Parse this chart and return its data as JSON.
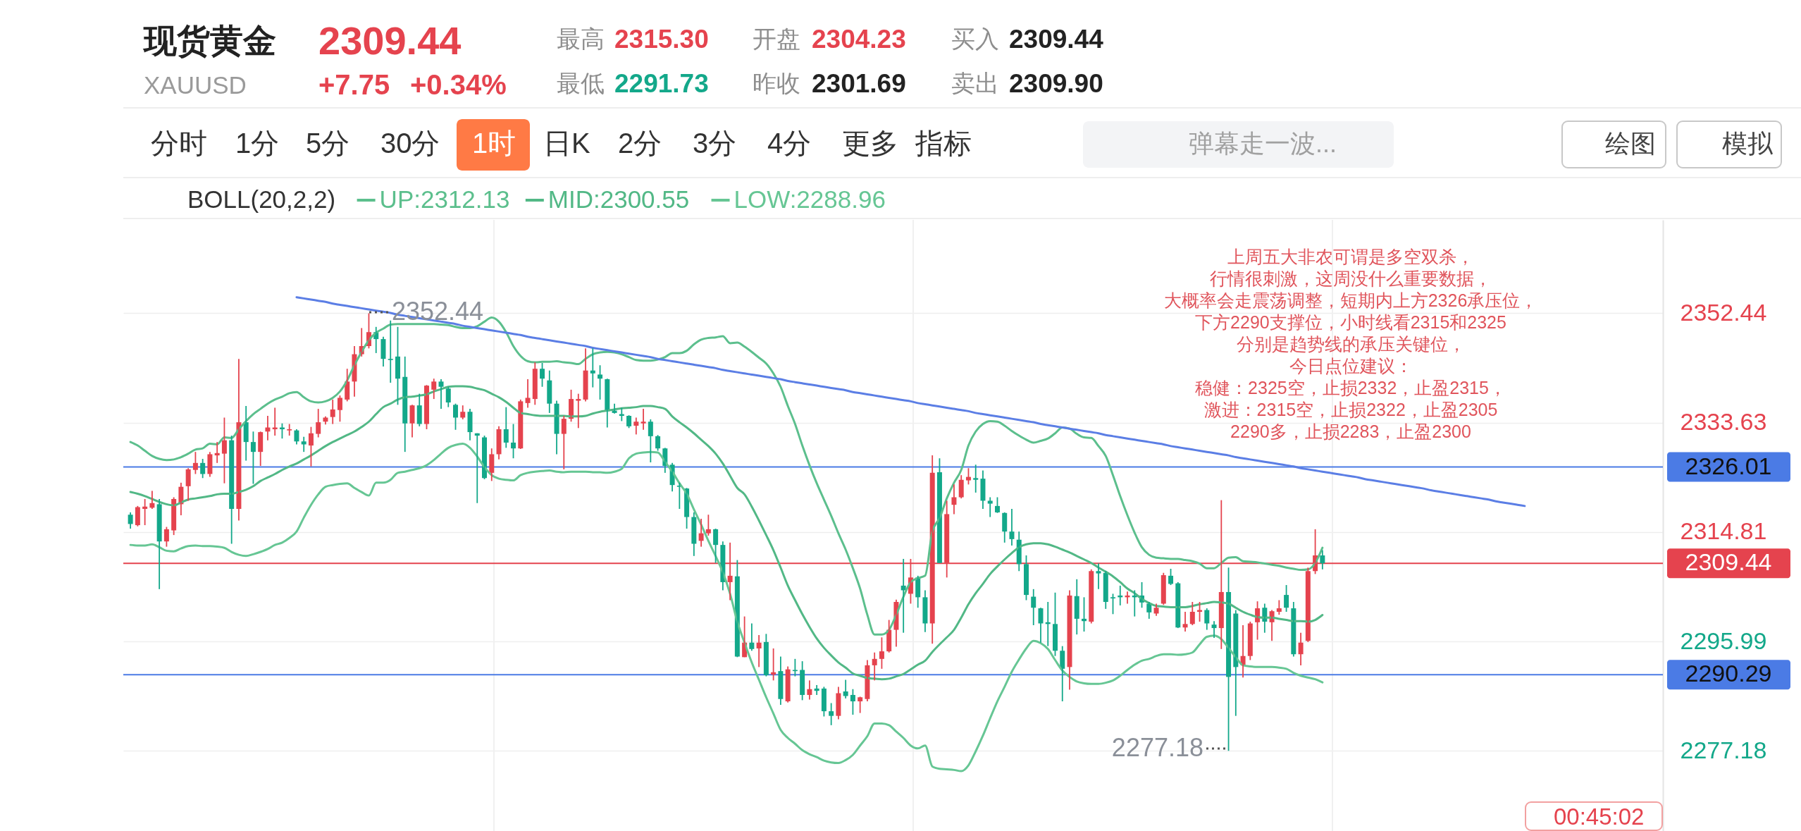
{
  "chart_data": {
    "type": "candlestick",
    "title": "现货黄金",
    "subtitle": "XAUUSD",
    "categories": [
      null,
      null,
      null,
      null,
      null,
      null,
      null,
      null,
      null,
      null,
      null,
      null,
      null,
      null,
      null,
      null,
      null,
      null,
      null,
      null,
      null,
      null,
      null,
      null,
      null,
      null,
      null,
      null,
      null,
      null,
      null,
      null,
      null,
      null,
      null,
      null,
      null,
      null,
      null,
      null,
      null,
      null,
      null,
      null,
      null,
      null,
      null,
      null,
      null,
      null,
      null,
      null,
      null,
      null,
      null,
      null,
      null,
      null,
      null,
      null,
      null,
      null,
      null,
      null,
      null,
      null,
      null,
      null,
      null,
      null,
      null,
      null,
      null,
      null,
      null,
      null,
      null,
      null,
      null,
      null,
      null,
      null,
      null,
      null,
      null,
      null,
      null,
      null,
      null,
      null,
      null,
      null,
      null,
      null,
      null,
      null,
      null,
      null,
      null,
      null,
      null,
      null,
      null,
      null,
      null,
      null,
      null,
      null,
      null,
      null,
      null,
      null,
      null,
      null,
      null,
      null,
      null,
      null,
      null,
      null,
      null,
      null,
      null,
      null,
      null,
      null,
      null,
      null,
      null,
      null,
      null,
      null,
      null,
      null,
      null,
      null,
      null,
      null,
      null,
      null,
      null,
      null,
      null,
      null,
      null,
      null,
      null,
      null,
      null,
      null,
      null,
      null,
      null,
      null,
      null,
      null,
      null,
      null,
      null,
      null,
      null,
      null,
      null,
      null,
      null,
      null,
      null,
      null,
      null,
      null,
      null,
      null,
      null,
      null,
      null,
      null,
      null,
      null,
      null,
      null,
      null,
      null,
      null,
      null,
      null,
      null,
      null,
      null,
      null,
      null,
      null,
      null,
      null,
      null
    ],
    "ohlc": [
      [
        2317.8,
        2318.2,
        2315.4,
        2316.2
      ],
      [
        2316.0,
        2319.3,
        2315.8,
        2319.1
      ],
      [
        2318.8,
        2320.5,
        2316.0,
        2319.2
      ],
      [
        2319.0,
        2321.9,
        2318.8,
        2319.8
      ],
      [
        2319.6,
        2320.5,
        2305.0,
        2313.2
      ],
      [
        2313.2,
        2315.7,
        2312.3,
        2315.3
      ],
      [
        2315.1,
        2320.8,
        2314.3,
        2320.5
      ],
      [
        2319.6,
        2323.3,
        2317.7,
        2322.6
      ],
      [
        2322.7,
        2325.8,
        2320.2,
        2325.6
      ],
      [
        2325.5,
        2328.6,
        2324.8,
        2326.7
      ],
      [
        2326.7,
        2327.4,
        2324.1,
        2324.8
      ],
      [
        2324.8,
        2328.6,
        2324.3,
        2328.2
      ],
      [
        2328.0,
        2330.3,
        2326.7,
        2328.4
      ],
      [
        2328.3,
        2334.5,
        2323.2,
        2330.6
      ],
      [
        2330.6,
        2331.4,
        2312.8,
        2318.8
      ],
      [
        2318.8,
        2344.6,
        2316.8,
        2333.7
      ],
      [
        2333.7,
        2336.5,
        2327.1,
        2330.3
      ],
      [
        2330.3,
        2332.1,
        2323.1,
        2328.6
      ],
      [
        2328.6,
        2332.1,
        2326.2,
        2332.0
      ],
      [
        2332.1,
        2334.8,
        2330.6,
        2332.8
      ],
      [
        2332.5,
        2336.2,
        2331.4,
        2332.8
      ],
      [
        2332.8,
        2333.5,
        2330.9,
        2332.5
      ],
      [
        2332.3,
        2333.4,
        2331.4,
        2332.5
      ],
      [
        2332.3,
        2332.5,
        2329.9,
        2330.4
      ],
      [
        2330.4,
        2331.2,
        2328.6,
        2329.9
      ],
      [
        2329.7,
        2332.9,
        2326.1,
        2331.8
      ],
      [
        2331.7,
        2336.0,
        2331.1,
        2333.7
      ],
      [
        2333.8,
        2334.7,
        2333.3,
        2334.5
      ],
      [
        2334.6,
        2337.6,
        2333.4,
        2335.9
      ],
      [
        2335.8,
        2338.3,
        2333.8,
        2337.9
      ],
      [
        2337.6,
        2342.9,
        2337.3,
        2340.7
      ],
      [
        2340.7,
        2346.8,
        2338.1,
        2345.4
      ],
      [
        2345.4,
        2349.9,
        2345.0,
        2346.8
      ],
      [
        2346.8,
        2352.44,
        2346.4,
        2349.2
      ],
      [
        2349.2,
        2350.1,
        2345.6,
        2348.0
      ],
      [
        2348.0,
        2348.4,
        2343.3,
        2344.6
      ],
      [
        2344.6,
        2351.2,
        2340.5,
        2344.4
      ],
      [
        2345.0,
        2350.1,
        2336.7,
        2341.2
      ],
      [
        2341.5,
        2345.0,
        2328.6,
        2333.5
      ],
      [
        2333.5,
        2336.7,
        2331.1,
        2336.6
      ],
      [
        2336.6,
        2338.6,
        2333.0,
        2333.4
      ],
      [
        2333.4,
        2340.1,
        2332.5,
        2340.0
      ],
      [
        2339.3,
        2341.2,
        2337.7,
        2340.7
      ],
      [
        2340.7,
        2341.1,
        2336.0,
        2339.8
      ],
      [
        2339.5,
        2339.8,
        2336.3,
        2337.1
      ],
      [
        2336.7,
        2336.9,
        2332.4,
        2334.5
      ],
      [
        2334.5,
        2336.6,
        2334.2,
        2335.5
      ],
      [
        2335.5,
        2336.0,
        2330.6,
        2332.0
      ],
      [
        2331.8,
        2331.8,
        2319.8,
        2331.4
      ],
      [
        2331.1,
        2331.4,
        2323.9,
        2324.1
      ],
      [
        2325.0,
        2329.2,
        2323.6,
        2328.2
      ],
      [
        2328.2,
        2333.0,
        2327.3,
        2332.5
      ],
      [
        2332.5,
        2336.3,
        2329.3,
        2330.2
      ],
      [
        2330.2,
        2333.4,
        2327.5,
        2329.2
      ],
      [
        2329.2,
        2337.6,
        2329.1,
        2337.3
      ],
      [
        2337.0,
        2341.1,
        2336.2,
        2337.9
      ],
      [
        2337.7,
        2344.0,
        2336.7,
        2342.9
      ],
      [
        2342.9,
        2343.9,
        2339.8,
        2341.2
      ],
      [
        2340.9,
        2342.6,
        2335.3,
        2336.9
      ],
      [
        2336.9,
        2337.4,
        2328.2,
        2331.7
      ],
      [
        2331.7,
        2334.8,
        2325.6,
        2334.3
      ],
      [
        2334.3,
        2339.3,
        2333.8,
        2337.7
      ],
      [
        2337.4,
        2338.6,
        2332.7,
        2337.7
      ],
      [
        2337.6,
        2346.4,
        2337.3,
        2342.6
      ],
      [
        2342.6,
        2346.4,
        2339.7,
        2342.1
      ],
      [
        2341.9,
        2343.5,
        2337.6,
        2341.2
      ],
      [
        2341.1,
        2341.2,
        2332.8,
        2335.6
      ],
      [
        2335.7,
        2336.9,
        2335.2,
        2335.3
      ],
      [
        2335.1,
        2336.2,
        2333.9,
        2334.8
      ],
      [
        2334.8,
        2334.9,
        2332.7,
        2333.0
      ],
      [
        2333.1,
        2334.5,
        2331.6,
        2333.8
      ],
      [
        2333.5,
        2336.0,
        2332.4,
        2333.8
      ],
      [
        2333.8,
        2334.2,
        2326.8,
        2331.3
      ],
      [
        2331.3,
        2331.5,
        2328.8,
        2329.2
      ],
      [
        2329.2,
        2329.3,
        2325.0,
        2326.2
      ],
      [
        2326.4,
        2326.7,
        2321.8,
        2322.9
      ],
      [
        2322.8,
        2323.3,
        2318.8,
        2322.6
      ],
      [
        2322.3,
        2322.4,
        2315.4,
        2317.4
      ],
      [
        2317.4,
        2318.2,
        2310.7,
        2312.8
      ],
      [
        2313.3,
        2317.1,
        2312.3,
        2314.6
      ],
      [
        2314.6,
        2317.8,
        2314.2,
        2315.3
      ],
      [
        2315.3,
        2315.4,
        2309.5,
        2312.6
      ],
      [
        2312.6,
        2313.2,
        2304.8,
        2306.2
      ],
      [
        2306.2,
        2313.0,
        2303.1,
        2307.3
      ],
      [
        2307.2,
        2310.0,
        2293.3,
        2293.4
      ],
      [
        2293.3,
        2300.3,
        2293.3,
        2295.8
      ],
      [
        2295.8,
        2299.1,
        2294.4,
        2294.7
      ],
      [
        2294.8,
        2297.1,
        2291.6,
        2295.8
      ],
      [
        2295.9,
        2297.3,
        2290.0,
        2290.2
      ],
      [
        2290.3,
        2294.8,
        2289.3,
        2290.7
      ],
      [
        2290.9,
        2293.4,
        2285.1,
        2286.1
      ],
      [
        2285.7,
        2291.7,
        2285.5,
        2291.2
      ],
      [
        2291.1,
        2293.0,
        2290.0,
        2290.9
      ],
      [
        2291.1,
        2292.6,
        2285.9,
        2286.8
      ],
      [
        2286.8,
        2289.3,
        2286.0,
        2287.8
      ],
      [
        2287.9,
        2288.5,
        2286.8,
        2287.5
      ],
      [
        2287.9,
        2288.2,
        2283.1,
        2284.0
      ],
      [
        2284.0,
        2285.4,
        2281.6,
        2283.2
      ],
      [
        2283.2,
        2288.2,
        2282.6,
        2287.1
      ],
      [
        2287.4,
        2289.4,
        2286.2,
        2286.6
      ],
      [
        2286.8,
        2287.8,
        2283.4,
        2285.7
      ],
      [
        2285.7,
        2286.5,
        2283.7,
        2286.4
      ],
      [
        2286.1,
        2292.8,
        2285.7,
        2291.9
      ],
      [
        2291.9,
        2294.1,
        2289.3,
        2293.0
      ],
      [
        2293.0,
        2296.7,
        2291.3,
        2294.3
      ],
      [
        2294.3,
        2299.7,
        2294.1,
        2298.0
      ],
      [
        2298.0,
        2303.2,
        2295.1,
        2302.8
      ],
      [
        2305.6,
        2310.2,
        2297.5,
        2304.8
      ],
      [
        2304.2,
        2310.2,
        2302.5,
        2307.0
      ],
      [
        2307.0,
        2307.3,
        2301.8,
        2303.6
      ],
      [
        2303.6,
        2304.8,
        2297.6,
        2299.1
      ],
      [
        2299.1,
        2328.0,
        2295.6,
        2325.0
      ],
      [
        2325.1,
        2327.5,
        2309.5,
        2309.5
      ],
      [
        2309.5,
        2320.2,
        2307.0,
        2317.9
      ],
      [
        2319.5,
        2323.0,
        2317.9,
        2320.8
      ],
      [
        2320.8,
        2324.6,
        2320.6,
        2323.8
      ],
      [
        2323.7,
        2325.8,
        2323.0,
        2324.3
      ],
      [
        2324.1,
        2326.4,
        2321.6,
        2323.8
      ],
      [
        2324.0,
        2325.4,
        2318.8,
        2320.2
      ],
      [
        2320.2,
        2320.8,
        2317.4,
        2319.7
      ],
      [
        2319.3,
        2320.8,
        2318.1,
        2318.2
      ],
      [
        2318.1,
        2318.2,
        2313.0,
        2314.9
      ],
      [
        2314.9,
        2318.8,
        2312.5,
        2313.6
      ],
      [
        2313.5,
        2314.9,
        2308.1,
        2309.3
      ],
      [
        2309.3,
        2310.8,
        2303.1,
        2304.0
      ],
      [
        2303.7,
        2305.0,
        2298.8,
        2301.8
      ],
      [
        2301.7,
        2301.8,
        2295.8,
        2299.1
      ],
      [
        2299.3,
        2302.8,
        2295.2,
        2299.0
      ],
      [
        2299.0,
        2304.4,
        2293.5,
        2294.4
      ],
      [
        2294.4,
        2295.2,
        2285.7,
        2291.3
      ],
      [
        2291.6,
        2304.8,
        2287.7,
        2303.9
      ],
      [
        2303.8,
        2306.7,
        2297.2,
        2299.9
      ],
      [
        2299.9,
        2303.6,
        2297.7,
        2299.5
      ],
      [
        2299.4,
        2308.4,
        2299.1,
        2308.1
      ],
      [
        2308.1,
        2309.4,
        2305.0,
        2307.7
      ],
      [
        2307.8,
        2308.1,
        2301.6,
        2302.8
      ],
      [
        2303.6,
        2304.2,
        2300.7,
        2303.4
      ],
      [
        2303.9,
        2305.6,
        2302.2,
        2303.6
      ],
      [
        2303.6,
        2304.6,
        2302.5,
        2303.9
      ],
      [
        2303.9,
        2304.8,
        2300.3,
        2303.6
      ],
      [
        2303.9,
        2306.2,
        2301.8,
        2302.7
      ],
      [
        2302.5,
        2302.8,
        2299.9,
        2301.0
      ],
      [
        2300.8,
        2302.5,
        2300.4,
        2301.8
      ],
      [
        2302.5,
        2307.8,
        2302.3,
        2307.4
      ],
      [
        2307.3,
        2308.5,
        2305.7,
        2305.9
      ],
      [
        2306.0,
        2306.2,
        2298.3,
        2298.4
      ],
      [
        2298.4,
        2301.1,
        2297.7,
        2299.0
      ],
      [
        2299.0,
        2302.8,
        2298.8,
        2301.1
      ],
      [
        2301.1,
        2302.8,
        2299.4,
        2301.4
      ],
      [
        2301.4,
        2301.7,
        2298.0,
        2299.1
      ],
      [
        2298.9,
        2299.5,
        2296.6,
        2298.3
      ],
      [
        2298.3,
        2320.3,
        2294.7,
        2304.5
      ],
      [
        2304.5,
        2308.7,
        2277.18,
        2289.9
      ],
      [
        2300.8,
        2301.4,
        2283.2,
        2291.6
      ],
      [
        2291.9,
        2298.8,
        2289.8,
        2293.5
      ],
      [
        2293.5,
        2299.4,
        2292.8,
        2299.1
      ],
      [
        2299.3,
        2302.9,
        2296.3,
        2301.7
      ],
      [
        2301.8,
        2302.5,
        2297.5,
        2299.4
      ],
      [
        2299.3,
        2301.4,
        2296.1,
        2301.2
      ],
      [
        2301.1,
        2303.1,
        2300.6,
        2301.7
      ],
      [
        2304.0,
        2305.7,
        2301.1,
        2301.8
      ],
      [
        2301.7,
        2302.8,
        2293.4,
        2293.8
      ],
      [
        2293.8,
        2297.5,
        2291.9,
        2295.8
      ],
      [
        2296.1,
        2308.7,
        2295.9,
        2308.1
      ],
      [
        2308.1,
        2315.3,
        2307.6,
        2310.8
      ],
      [
        2310.8,
        2311.7,
        2308.4,
        2309.44
      ],
      null,
      null,
      null,
      null,
      null,
      null,
      null,
      null,
      null,
      null,
      null,
      null,
      null,
      null,
      null,
      null,
      null,
      null,
      null,
      null,
      null,
      null,
      null,
      null,
      null,
      null,
      null,
      null
    ],
    "colors": [
      "#13a88a",
      "#e5434e",
      "#e5434e",
      "#e5434e",
      "#13a88a",
      "#e5434e",
      "#e5434e",
      "#e5434e",
      "#e5434e",
      "#e5434e",
      "#13a88a",
      "#e5434e",
      "#e5434e",
      "#e5434e",
      "#13a88a",
      "#e5434e",
      "#13a88a",
      "#13a88a",
      "#e5434e",
      "#e5434e",
      "#e5434e",
      "#13a88a",
      "#e5434e",
      "#13a88a",
      "#13a88a",
      "#e5434e",
      "#e5434e",
      "#e5434e",
      "#e5434e",
      "#e5434e",
      "#e5434e",
      "#e5434e",
      "#e5434e",
      "#e5434e",
      "#13a88a",
      "#13a88a",
      "#13a88a",
      "#13a88a",
      "#13a88a",
      "#e5434e",
      "#13a88a",
      "#e5434e",
      "#e5434e",
      "#13a88a",
      "#13a88a",
      "#13a88a",
      "#e5434e",
      "#13a88a",
      "#13a88a",
      "#13a88a",
      "#e5434e",
      "#e5434e",
      "#13a88a",
      "#13a88a",
      "#e5434e",
      "#e5434e",
      "#e5434e",
      "#13a88a",
      "#13a88a",
      "#13a88a",
      "#e5434e",
      "#e5434e",
      "#e5434e",
      "#e5434e",
      "#13a88a",
      "#13a88a",
      "#13a88a",
      "#13a88a",
      "#13a88a",
      "#13a88a",
      "#e5434e",
      "#e5434e",
      "#13a88a",
      "#13a88a",
      "#13a88a",
      "#13a88a",
      "#13a88a",
      "#13a88a",
      "#13a88a",
      "#e5434e",
      "#e5434e",
      "#13a88a",
      "#13a88a",
      "#e5434e",
      "#13a88a",
      "#e5434e",
      "#13a88a",
      "#e5434e",
      "#13a88a",
      "#e5434e",
      "#13a88a",
      "#e5434e",
      "#13a88a",
      "#13a88a",
      "#e5434e",
      "#13a88a",
      "#13a88a",
      "#13a88a",
      "#e5434e",
      "#13a88a",
      "#13a88a",
      "#e5434e",
      "#e5434e",
      "#e5434e",
      "#e5434e",
      "#e5434e",
      "#e5434e",
      "#13a88a",
      "#e5434e",
      "#13a88a",
      "#13a88a",
      "#e5434e",
      "#13a88a",
      "#e5434e",
      "#e5434e",
      "#e5434e",
      "#e5434e",
      "#13a88a",
      "#13a88a",
      "#13a88a",
      "#13a88a",
      "#13a88a",
      "#13a88a",
      "#13a88a",
      "#13a88a",
      "#13a88a",
      "#13a88a",
      "#13a88a",
      "#13a88a",
      "#13a88a",
      "#e5434e",
      "#13a88a",
      "#13a88a",
      "#e5434e",
      "#13a88a",
      "#13a88a",
      "#13a88a",
      "#13a88a",
      "#e5434e",
      "#13a88a",
      "#13a88a",
      "#13a88a",
      "#e5434e",
      "#e5434e",
      "#13a88a",
      "#13a88a",
      "#e5434e",
      "#e5434e",
      "#e5434e",
      "#13a88a",
      "#13a88a",
      "#e5434e",
      "#13a88a",
      "#13a88a",
      "#e5434e",
      "#e5434e",
      "#e5434e",
      "#13a88a",
      "#e5434e",
      "#e5434e",
      "#13a88a",
      "#13a88a",
      "#e5434e",
      "#e5434e",
      "#e5434e",
      "#13a88a",
      null,
      null,
      null,
      null,
      null,
      null,
      null,
      null,
      null,
      null,
      null,
      null,
      null,
      null,
      null,
      null,
      null,
      null,
      null,
      null,
      null,
      null,
      null,
      null,
      null,
      null,
      null,
      null
    ],
    "series": [
      {
        "name": "UP:2312.13",
        "type": "line",
        "color": "#5cbf8d",
        "values": [
          2330.3,
          2329.7,
          2328.8,
          2327.9,
          2327.4,
          2327.2,
          2327.3,
          2327.7,
          2328.3,
          2329.0,
          2329.2,
          2330.0,
          2329.9,
          2331.1,
          2331.0,
          2332.5,
          2333.9,
          2335.1,
          2336.0,
          2336.9,
          2337.6,
          2338.1,
          2338.7,
          2338.9,
          2338.0,
          2337.3,
          2337.1,
          2337.3,
          2337.9,
          2339.0,
          2340.9,
          2343.5,
          2345.8,
          2347.8,
          2349.1,
          2349.8,
          2350.5,
          2350.6,
          2350.6,
          2350.6,
          2350.6,
          2350.6,
          2350.6,
          2350.5,
          2350.4,
          2350.1,
          2349.9,
          2349.9,
          2350.2,
          2351.0,
          2351.7,
          2351.0,
          2349.2,
          2346.8,
          2345.1,
          2344.2,
          2344.0,
          2344.1,
          2344.1,
          2344.2,
          2344.0,
          2343.9,
          2343.7,
          2344.6,
          2345.4,
          2345.7,
          2345.8,
          2345.7,
          2345.4,
          2344.9,
          2344.4,
          2344.3,
          2344.3,
          2344.5,
          2344.9,
          2345.6,
          2345.6,
          2346.0,
          2347.1,
          2347.9,
          2348.2,
          2348.3,
          2348.5,
          2347.3,
          2347.4,
          2346.7,
          2345.8,
          2344.8,
          2343.8,
          2342.1,
          2339.8,
          2336.5,
          2333.4,
          2329.7,
          2326.3,
          2323.2,
          2320.4,
          2317.6,
          2314.6,
          2311.8,
          2308.6,
          2305.1,
          2300.6,
          2297.2,
          2297.2,
          2298.0,
          2300.6,
          2303.7,
          2306.2,
          2306.9,
          2307.3,
          2314.9,
          2317.2,
          2320.6,
          2323.3,
          2325.5,
          2329.7,
          2332.1,
          2333.4,
          2333.9,
          2333.8,
          2333.1,
          2332.2,
          2331.4,
          2330.7,
          2330.2,
          2330.5,
          2330.9,
          2331.8,
          2332.8,
          2332.6,
          2331.7,
          2331.1,
          2331.0,
          2329.6,
          2327.9,
          2324.6,
          2321.0,
          2317.7,
          2314.7,
          2312.2,
          2310.9,
          2310.4,
          2310.3,
          2310.2,
          2310.2,
          2310.0,
          2309.8,
          2309.4,
          2308.6,
          2308.6,
          2309.5,
          2310.4,
          2310.5,
          2309.8,
          2309.7,
          2309.6,
          2309.4,
          2309.2,
          2309.0,
          2308.7,
          2308.5,
          2308.3,
          2308.4,
          2309.5,
          2312.13,
          null,
          null,
          null,
          null,
          null,
          null,
          null,
          null,
          null,
          null,
          null,
          null,
          null,
          null,
          null,
          null,
          null,
          null,
          null,
          null,
          null,
          null,
          null,
          null,
          null,
          null,
          null,
          null
        ]
      },
      {
        "name": "MID:2300.55",
        "type": "line",
        "color": "#52b886",
        "values": [
          2321.7,
          2321.4,
          2321.0,
          2320.5,
          2320.0,
          2319.6,
          2319.4,
          2319.9,
          2320.4,
          2320.6,
          2320.8,
          2321.0,
          2321.3,
          2321.4,
          2321.4,
          2321.7,
          2322.1,
          2322.7,
          2323.6,
          2324.2,
          2324.8,
          2325.5,
          2326.1,
          2326.6,
          2327.3,
          2328.0,
          2328.8,
          2329.6,
          2330.3,
          2330.9,
          2331.5,
          2332.1,
          2332.9,
          2333.8,
          2335.1,
          2336.3,
          2336.9,
          2337.6,
          2338.0,
          2338.1,
          2338.3,
          2338.5,
          2339.0,
          2339.4,
          2339.8,
          2339.9,
          2339.9,
          2339.8,
          2339.5,
          2339.2,
          2338.6,
          2338.0,
          2337.2,
          2336.2,
          2335.3,
          2335.1,
          2334.9,
          2334.8,
          2334.8,
          2334.8,
          2334.8,
          2334.7,
          2334.7,
          2334.8,
          2335.2,
          2335.5,
          2335.7,
          2335.9,
          2336.1,
          2336.2,
          2336.3,
          2336.5,
          2336.5,
          2336.3,
          2336.0,
          2334.7,
          2333.7,
          2332.8,
          2331.8,
          2330.7,
          2329.6,
          2328.3,
          2326.6,
          2324.5,
          2322.4,
          2321.3,
          2319.2,
          2316.8,
          2314.3,
          2311.7,
          2308.7,
          2305.6,
          2303.1,
          2300.7,
          2298.5,
          2296.5,
          2294.9,
          2293.6,
          2292.4,
          2291.5,
          2290.5,
          2290.1,
          2289.7,
          2289.6,
          2289.5,
          2289.6,
          2290.0,
          2290.4,
          2291.2,
          2292.0,
          2292.7,
          2294.2,
          2295.5,
          2296.7,
          2298.0,
          2300.1,
          2302.4,
          2304.3,
          2305.9,
          2307.6,
          2308.9,
          2310.1,
          2311.2,
          2312.2,
          2312.7,
          2312.9,
          2312.9,
          2312.7,
          2312.3,
          2311.8,
          2311.3,
          2310.7,
          2310.1,
          2309.5,
          2308.7,
          2308.0,
          2307.2,
          2306.2,
          2305.1,
          2304.3,
          2303.3,
          2302.6,
          2302.1,
          2302.0,
          2301.9,
          2301.9,
          2301.9,
          2302.1,
          2302.4,
          2302.6,
          2302.8,
          2302.7,
          2302.5,
          2301.8,
          2301.1,
          2300.6,
          2300.2,
          2300.1,
          2300.1,
          2299.9,
          2299.7,
          2299.5,
          2299.5,
          2299.4,
          2299.7,
          2300.55,
          null,
          null,
          null,
          null,
          null,
          null,
          null,
          null,
          null,
          null,
          null,
          null,
          null,
          null,
          null,
          null,
          null,
          null,
          null,
          null,
          null,
          null,
          null,
          null,
          null,
          null,
          null,
          null
        ]
      },
      {
        "name": "LOW:2288.96",
        "type": "line",
        "color": "#66c694",
        "values": [
          2312.6,
          2312.5,
          2312.5,
          2312.7,
          2312.2,
          2311.6,
          2311.5,
          2312.0,
          2312.4,
          2312.5,
          2312.4,
          2312.4,
          2312.3,
          2312.1,
          2311.4,
          2310.9,
          2310.7,
          2311.0,
          2311.4,
          2311.9,
          2312.6,
          2313.0,
          2313.8,
          2314.9,
          2317.3,
          2319.5,
          2321.3,
          2322.6,
          2322.9,
          2323.1,
          2323.2,
          2322.4,
          2321.7,
          2321.1,
          2323.3,
          2323.3,
          2323.8,
          2325.0,
          2325.2,
          2325.5,
          2325.8,
          2326.3,
          2327.2,
          2328.3,
          2329.3,
          2329.8,
          2330.0,
          2329.3,
          2327.8,
          2326.0,
          2324.6,
          2324.0,
          2323.8,
          2323.7,
          2324.6,
          2325.0,
          2325.2,
          2325.3,
          2325.4,
          2325.2,
          2325.1,
          2325.2,
          2325.2,
          2325.2,
          2325.1,
          2325.1,
          2325.0,
          2325.2,
          2325.7,
          2327.5,
          2328.3,
          2328.5,
          2328.6,
          2328.5,
          2326.9,
          2325.2,
          2323.2,
          2321.4,
          2318.7,
          2316.1,
          2313.3,
          2310.7,
          2307.9,
          2304.2,
          2299.4,
          2295.8,
          2292.4,
          2289.4,
          2286.4,
          2283.6,
          2280.8,
          2279.4,
          2278.4,
          2277.3,
          2276.6,
          2276.1,
          2275.5,
          2275.2,
          2275.1,
          2275.6,
          2276.5,
          2278.1,
          2279.7,
          2281.9,
          2281.9,
          2281.6,
          2280.5,
          2279.4,
          2278.1,
          2277.6,
          2278.1,
          2274.5,
          2274.1,
          2274.0,
          2273.9,
          2273.7,
          2274.7,
          2277.1,
          2279.8,
          2282.8,
          2285.7,
          2288.2,
          2290.8,
          2292.9,
          2294.8,
          2296.1,
          2295.7,
          2294.7,
          2292.8,
          2291.0,
          2289.9,
          2289.1,
          2288.8,
          2288.7,
          2288.7,
          2288.9,
          2289.3,
          2290.1,
          2291.1,
          2292.0,
          2292.7,
          2293.0,
          2293.5,
          2293.8,
          2293.8,
          2293.7,
          2293.8,
          2294.1,
          2295.5,
          2296.8,
          2297.0,
          2296.4,
          2294.9,
          2293.3,
          2291.9,
          2291.7,
          2291.6,
          2291.6,
          2291.6,
          2291.5,
          2291.3,
          2290.6,
          2290.1,
          2289.8,
          2289.5,
          2288.96,
          null,
          null,
          null,
          null,
          null,
          null,
          null,
          null,
          null,
          null,
          null,
          null,
          null,
          null,
          null,
          null,
          null,
          null,
          null,
          null,
          null,
          null,
          null,
          null,
          null,
          null,
          null,
          null
        ]
      },
      {
        "type": "line",
        "color": "#5b7ee5",
        "values": [
          null,
          null,
          null,
          null,
          null,
          null,
          null,
          null,
          null,
          null,
          null,
          null,
          null,
          null,
          null,
          null,
          null,
          null,
          null,
          null,
          null,
          null,
          null,
          2355.2,
          2355.0,
          2354.8,
          2354.6,
          2354.4,
          2354.1,
          2353.9,
          2353.7,
          2353.5,
          2353.3,
          2353.1,
          2352.9,
          2352.7,
          2352.5,
          2352.2,
          2352.0,
          2351.8,
          2351.6,
          2351.4,
          2351.2,
          2351.0,
          2350.8,
          2350.6,
          2350.3,
          2350.1,
          2349.9,
          2349.7,
          2349.5,
          2349.3,
          2349.1,
          2348.9,
          2348.7,
          2348.4,
          2348.2,
          2348.0,
          2347.8,
          2347.6,
          2347.4,
          2347.2,
          2347.0,
          2346.8,
          2346.5,
          2346.3,
          2346.1,
          2345.9,
          2345.7,
          2345.5,
          2345.3,
          2345.1,
          2344.9,
          2344.6,
          2344.4,
          2344.2,
          2344.0,
          2343.8,
          2343.6,
          2343.4,
          2343.2,
          2343.0,
          2342.7,
          2342.5,
          2342.3,
          2342.1,
          2341.9,
          2341.7,
          2341.5,
          2341.3,
          2341.1,
          2340.8,
          2340.6,
          2340.4,
          2340.2,
          2340.0,
          2339.8,
          2339.6,
          2339.4,
          2339.2,
          2338.9,
          2338.7,
          2338.5,
          2338.3,
          2338.1,
          2337.9,
          2337.7,
          2337.5,
          2337.3,
          2337.0,
          2336.8,
          2336.6,
          2336.4,
          2336.2,
          2336.0,
          2335.8,
          2335.6,
          2335.3,
          2335.1,
          2334.9,
          2334.7,
          2334.5,
          2334.3,
          2334.1,
          2333.9,
          2333.7,
          2333.4,
          2333.2,
          2333.0,
          2332.8,
          2332.6,
          2332.4,
          2332.2,
          2332.0,
          2331.8,
          2331.5,
          2331.3,
          2331.1,
          2330.9,
          2330.7,
          2330.5,
          2330.3,
          2330.1,
          2329.9,
          2329.6,
          2329.4,
          2329.2,
          2329.0,
          2328.8,
          2328.6,
          2328.4,
          2328.2,
          2328.0,
          2327.7,
          2327.5,
          2327.3,
          2327.1,
          2326.9,
          2326.7,
          2326.5,
          2326.3,
          2326.1,
          2325.8,
          2325.6,
          2325.4,
          2325.2,
          2325.0,
          2324.8,
          2324.6,
          2324.4,
          2324.2,
          2323.9,
          2323.7,
          2323.5,
          2323.3,
          2323.1,
          2322.9,
          2322.7,
          2322.5,
          2322.3,
          2322.0,
          2321.8,
          2321.6,
          2321.4,
          2321.2,
          2321.0,
          2320.8,
          2320.6,
          2320.4,
          2320.1,
          2319.9,
          2319.7,
          2319.5,
          2319.3
        ]
      }
    ],
    "legend_title": "BOLL(20,2,2)",
    "legend": "top left",
    "ylim": [
      2263.4,
      2368.5
    ],
    "yticks": [
      2277.18,
      2295.99,
      2314.81,
      2333.63,
      2352.44
    ],
    "grid": "y",
    "ref_lines": [
      {
        "axis": "y",
        "value": 2326.01,
        "label": "2326.01",
        "color": "#4b7be5"
      },
      {
        "axis": "y",
        "value": 2309.44,
        "label": "2309.44",
        "color": "#e5434e"
      },
      {
        "axis": "y",
        "value": 2290.29,
        "label": "2290.29",
        "color": "#4b7be5"
      }
    ],
    "annotations": [
      "2309.44",
      "+7.75",
      "+0.34%",
      "最高",
      "2315.30",
      "开盘",
      "2304.23",
      "买入",
      "2309.44",
      "最低",
      "2291.73",
      "昨收",
      "2301.69",
      "卖出",
      "2309.90",
      "分时",
      "1分",
      "5分",
      "30分",
      "1时",
      "日K",
      "2分",
      "3分",
      "4分",
      "更多",
      "指标",
      "弹幕走一波...",
      "绘图",
      "模拟",
      "上周五大非农可谓是多空双杀，",
      "行情很刺激，这周没什么重要数据，",
      "大概率会走震荡调整，短期内上方2326承压位，",
      "下方2290支撑位，小时线看2315和2325",
      "分别是趋势线的承压关键位，",
      "今日点位建议：",
      "稳健：2325空，止损2332，止盈2315，",
      "激进：2315空，止损2322，止盈2305",
      "2290多，止损2283，止盈2300",
      "2352.44",
      "2277.18",
      "00:45:02"
    ]
  }
}
